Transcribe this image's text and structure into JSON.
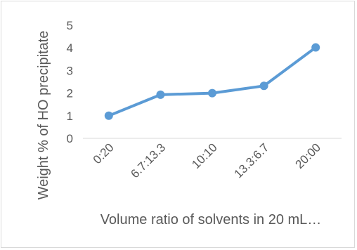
{
  "chart_data": {
    "type": "line",
    "title": "",
    "xlabel": "Volume ratio of solvents in 20 mL…",
    "ylabel": "Weight % of HO precipitate",
    "categories": [
      "0:20",
      "6.7:13.3",
      "10:10",
      "13.3:6.7",
      "20:00"
    ],
    "series": [
      {
        "values": [
          1.0,
          1.93,
          2.0,
          2.32,
          4.02
        ]
      }
    ],
    "ylim": [
      0,
      5
    ],
    "yticks": [
      "0",
      "1",
      "2",
      "3",
      "4",
      "5"
    ],
    "grid": false,
    "legend": "none",
    "colors": {
      "series": "#5B9BD5",
      "axis": "#d9d9d9",
      "text": "#595959"
    }
  }
}
